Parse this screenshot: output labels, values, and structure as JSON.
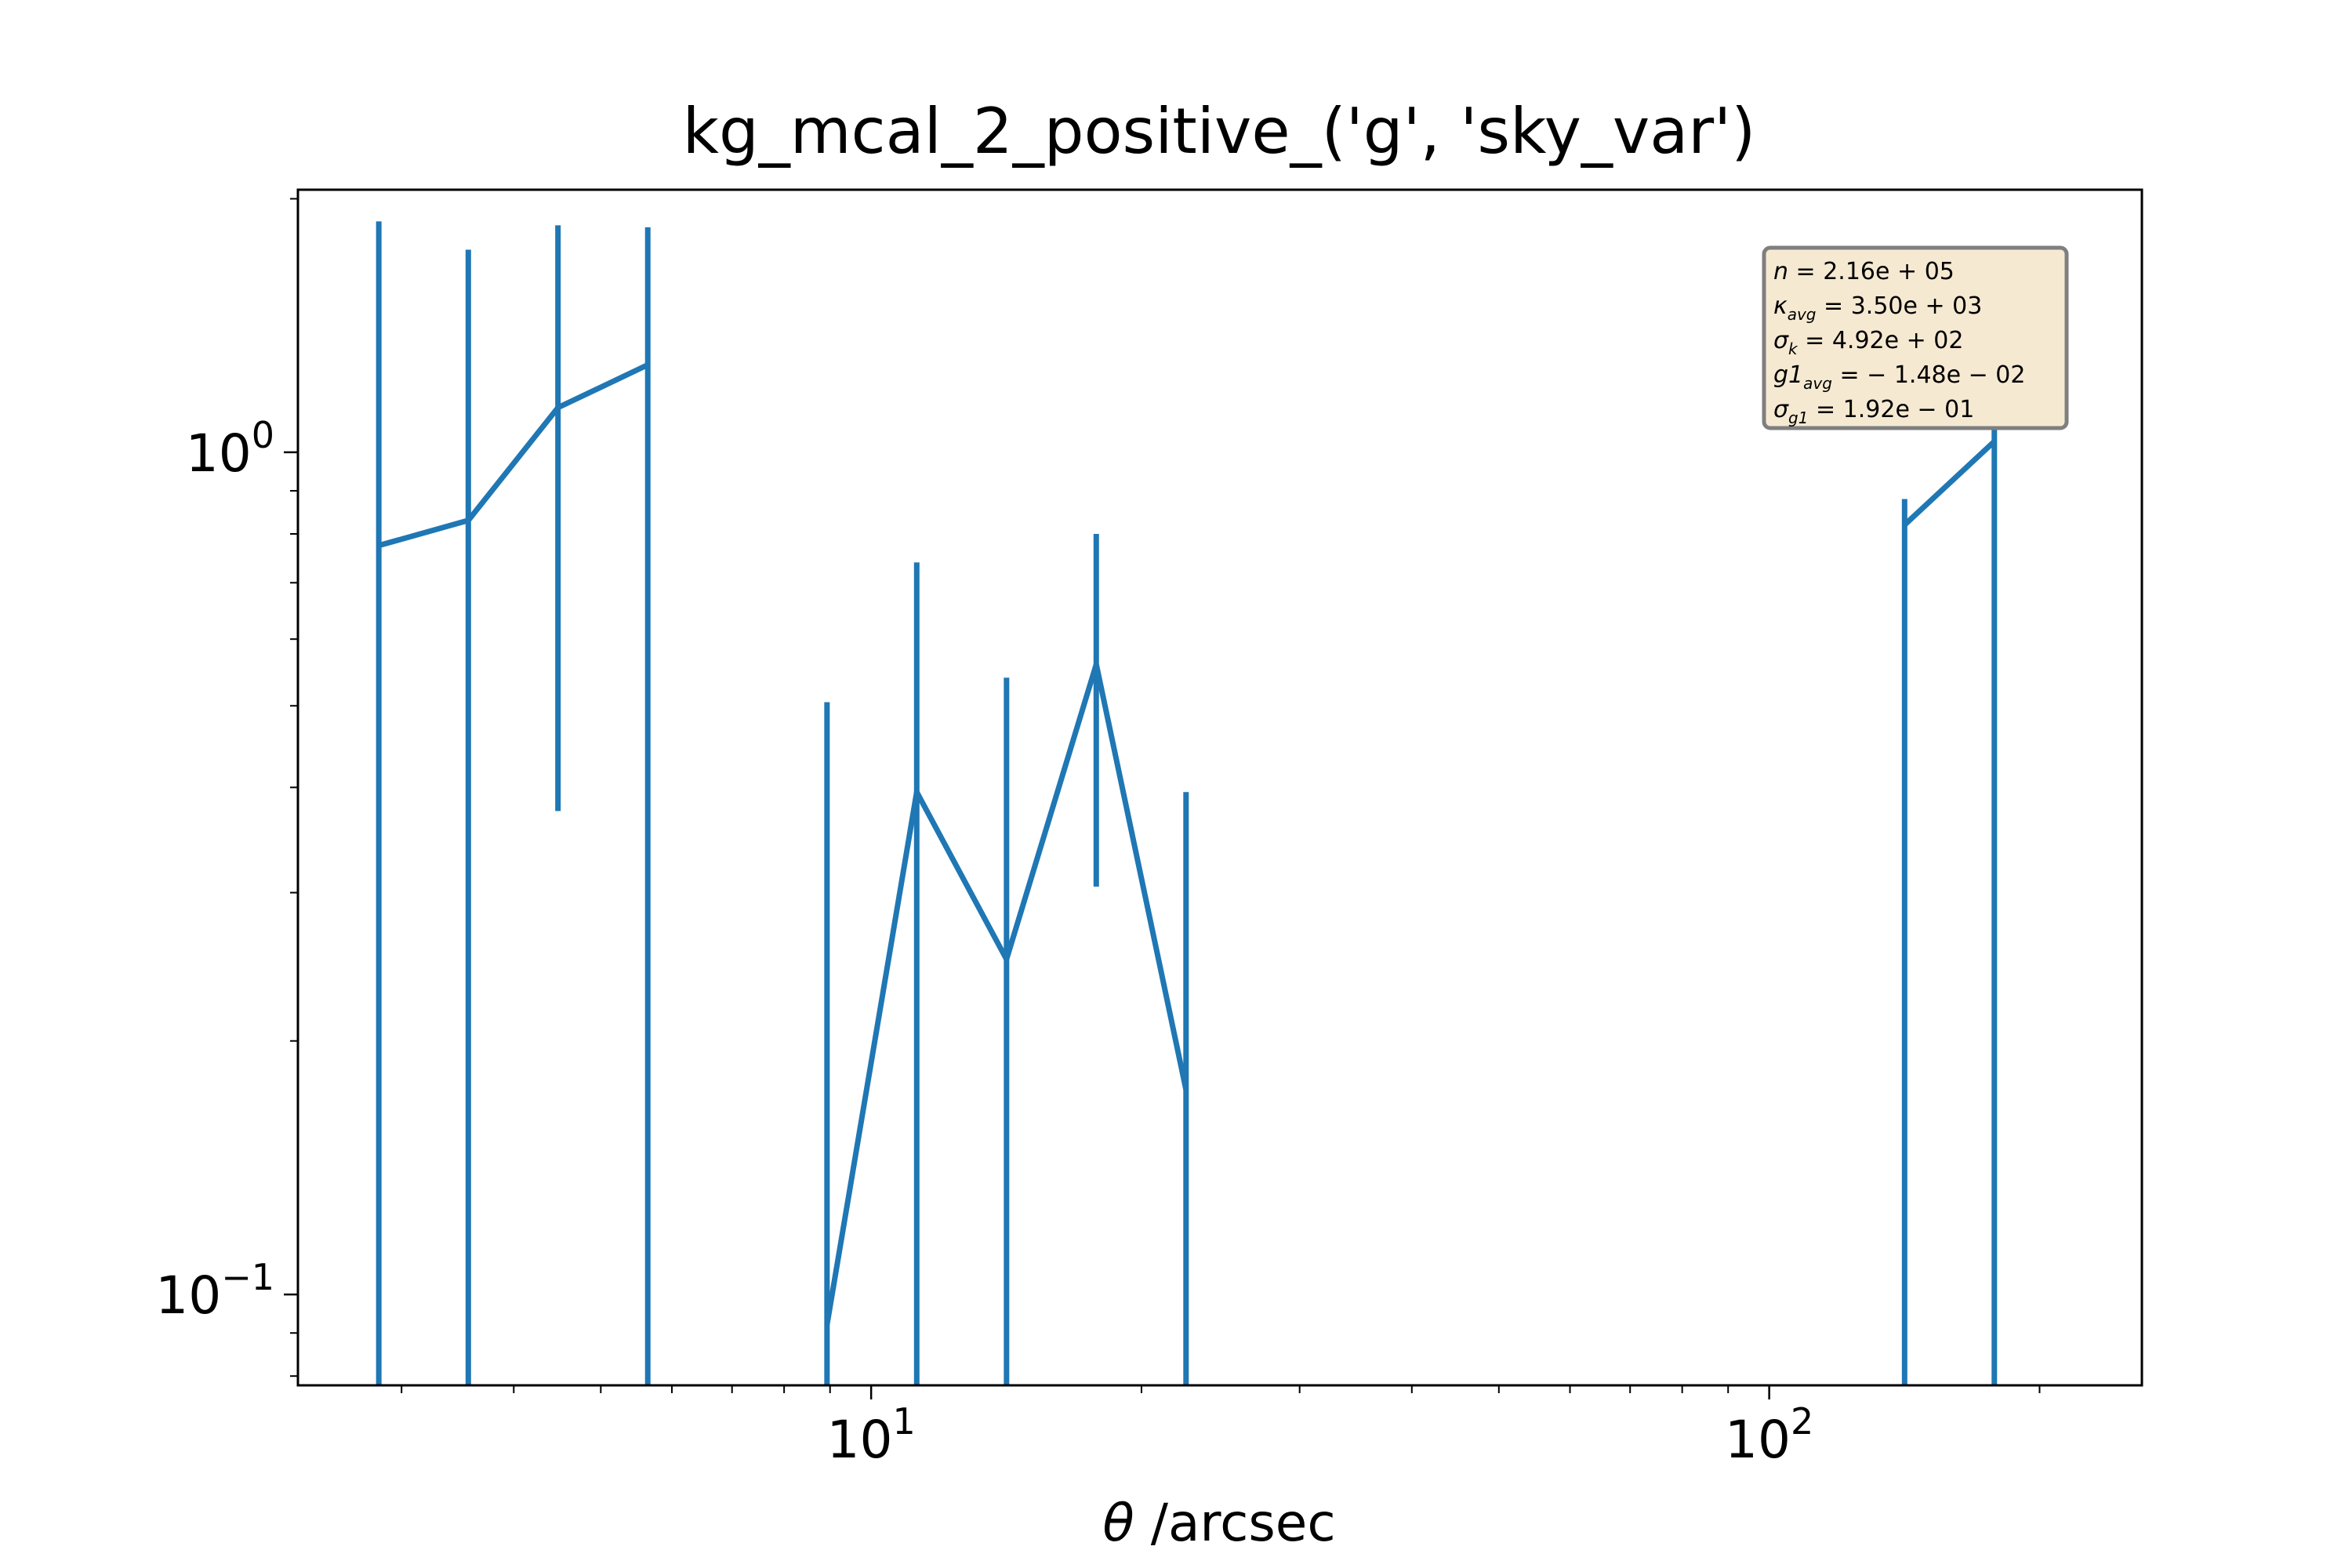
{
  "chart_data": {
    "type": "line",
    "title": "kg_mcal_2_positive_('g', 'sky_var')",
    "xlabel_symbol": "θ",
    "xlabel_unit": " /arcsec",
    "x_scale": "log",
    "y_scale": "log",
    "xlim": [
      2.3,
      260
    ],
    "ylim": [
      0.078,
      2.05
    ],
    "x_ticks": [
      {
        "base": "10",
        "exp": "1",
        "value": 10
      },
      {
        "base": "10",
        "exp": "2",
        "value": 100
      }
    ],
    "y_ticks": [
      {
        "base": "10",
        "exp": "0",
        "value": 1
      },
      {
        "base": "10",
        "exp": "−1",
        "value": 0.1
      }
    ],
    "series": [
      {
        "color": "#1f77b4",
        "segments": [
          [
            {
              "x": 2.83,
              "y": 0.775,
              "ylo": 0.078,
              "yhi": 1.88
            },
            {
              "x": 3.56,
              "y": 0.83,
              "ylo": 0.078,
              "yhi": 1.74
            },
            {
              "x": 4.48,
              "y": 1.13,
              "ylo": 0.375,
              "yhi": 1.86
            },
            {
              "x": 5.64,
              "y": 1.27,
              "ylo": 0.078,
              "yhi": 1.85
            }
          ],
          [
            {
              "x": 8.93,
              "y": 0.092,
              "ylo": 0.078,
              "yhi": 0.505
            },
            {
              "x": 11.24,
              "y": 0.395,
              "ylo": 0.078,
              "yhi": 0.74
            },
            {
              "x": 14.15,
              "y": 0.25,
              "ylo": 0.078,
              "yhi": 0.54
            },
            {
              "x": 17.81,
              "y": 0.56,
              "ylo": 0.305,
              "yhi": 0.8
            },
            {
              "x": 22.42,
              "y": 0.175,
              "ylo": 0.078,
              "yhi": 0.395
            }
          ],
          [
            {
              "x": 141.5,
              "y": 0.82,
              "ylo": 0.078,
              "yhi": 0.88
            },
            {
              "x": 178.1,
              "y": 1.03,
              "ylo": 0.078,
              "yhi": 1.08
            }
          ]
        ]
      }
    ],
    "stats_box": {
      "position": "top-right",
      "background": "#f6e9d2",
      "border": "#7f7f7f",
      "lines": [
        {
          "sym": "n",
          "sub": "",
          "text": " = 2.16e + 05"
        },
        {
          "sym": "κ",
          "sub": "avg",
          "text": " = 3.50e + 03"
        },
        {
          "sym": "σ",
          "sub": "k",
          "text": " = 4.92e + 02"
        },
        {
          "sym": "g1",
          "sub": "avg",
          "text": " = − 1.48e − 02"
        },
        {
          "sym": "σ",
          "sub": "g1",
          "text": " = 1.92e − 01"
        }
      ]
    }
  }
}
